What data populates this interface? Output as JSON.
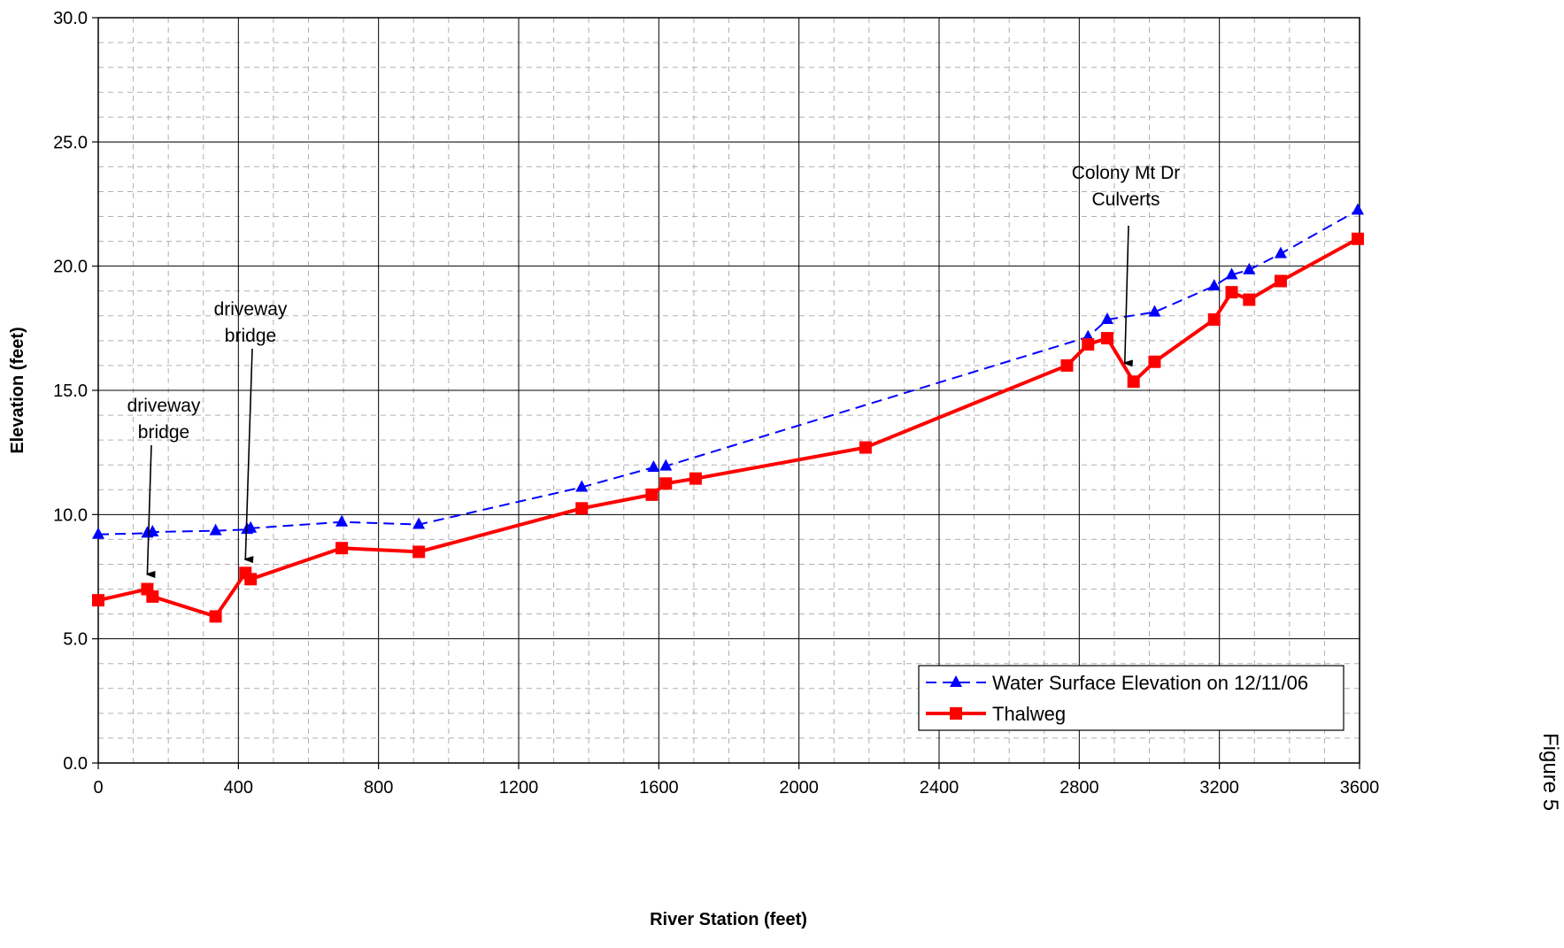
{
  "chart_data": {
    "type": "line",
    "xlabel": "River Station (feet)",
    "ylabel": "Elevation (feet)",
    "xlim": [
      0,
      3600
    ],
    "ylim": [
      0,
      30
    ],
    "x_ticks": [
      0,
      400,
      800,
      1200,
      1600,
      2000,
      2400,
      2800,
      3200,
      3600
    ],
    "x_tick_labels": [
      "0",
      "400",
      "800",
      "1200",
      "1600",
      "2000",
      "2400",
      "2800",
      "3200",
      "3600"
    ],
    "y_ticks": [
      0,
      5,
      10,
      15,
      20,
      25,
      30
    ],
    "y_tick_labels": [
      "0.0",
      "5.0",
      "10.0",
      "15.0",
      "20.0",
      "25.0",
      "30.0"
    ],
    "grid": true,
    "legend_position": "bottom-right",
    "series": [
      {
        "name": "Water Surface Elevation on 12/11/06",
        "color": "#0000ff",
        "line_style": "dashed",
        "marker": "triangle",
        "points": [
          [
            0,
            9.2
          ],
          [
            140,
            9.25
          ],
          [
            155,
            9.3
          ],
          [
            335,
            9.35
          ],
          [
            425,
            9.4
          ],
          [
            435,
            9.45
          ],
          [
            695,
            9.7
          ],
          [
            915,
            9.6
          ],
          [
            1380,
            11.1
          ],
          [
            1585,
            11.9
          ],
          [
            1620,
            11.95
          ],
          [
            2825,
            17.15
          ],
          [
            2880,
            17.85
          ],
          [
            3015,
            18.15
          ],
          [
            3185,
            19.2
          ],
          [
            3235,
            19.65
          ],
          [
            3285,
            19.85
          ],
          [
            3375,
            20.5
          ],
          [
            3595,
            22.25
          ]
        ]
      },
      {
        "name": "Thalweg",
        "color": "#ff0000",
        "line_style": "solid",
        "marker": "square",
        "points": [
          [
            0,
            6.55
          ],
          [
            140,
            7.0
          ],
          [
            155,
            6.7
          ],
          [
            335,
            5.9
          ],
          [
            420,
            7.65
          ],
          [
            435,
            7.4
          ],
          [
            695,
            8.65
          ],
          [
            915,
            8.5
          ],
          [
            1380,
            10.25
          ],
          [
            1580,
            10.8
          ],
          [
            1620,
            11.25
          ],
          [
            1705,
            11.45
          ],
          [
            2190,
            12.7
          ],
          [
            2765,
            16.0
          ],
          [
            2825,
            16.85
          ],
          [
            2880,
            17.1
          ],
          [
            2955,
            15.35
          ],
          [
            3015,
            16.15
          ],
          [
            3185,
            17.85
          ],
          [
            3235,
            18.95
          ],
          [
            3285,
            18.65
          ],
          [
            3375,
            19.4
          ],
          [
            3595,
            21.1
          ]
        ]
      }
    ],
    "annotations": [
      {
        "lines": [
          "driveway",
          "bridge"
        ],
        "arrow_tip": [
          140,
          7.6
        ]
      },
      {
        "lines": [
          "driveway",
          "bridge"
        ],
        "arrow_tip": [
          420,
          8.2
        ]
      },
      {
        "lines": [
          "Colony Mt Dr",
          "Culverts"
        ],
        "arrow_tip": [
          2930,
          16.1
        ]
      }
    ]
  },
  "side_label": "Figure 5"
}
